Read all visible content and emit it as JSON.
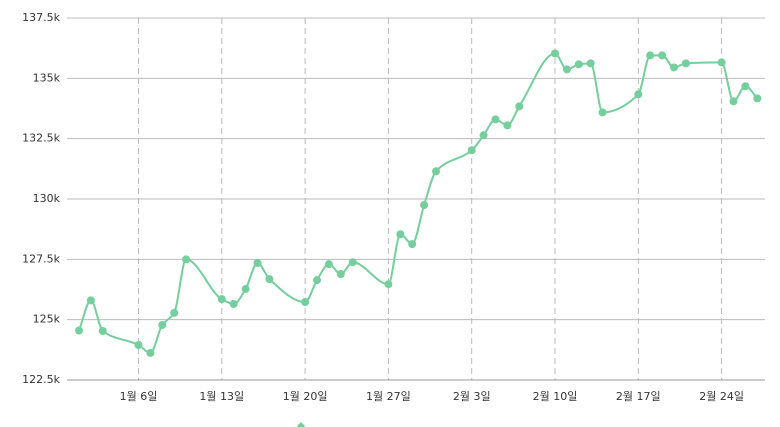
{
  "chart_data": {
    "type": "line",
    "x": [
      "1월 1일",
      "1월 2일",
      "1월 3일",
      "1월 6일",
      "1월 7일",
      "1월 8일",
      "1월 9일",
      "1월 10일",
      "1월 13일",
      "1월 14일",
      "1월 15일",
      "1월 16일",
      "1월 17일",
      "1월 20일",
      "1월 21일",
      "1월 22일",
      "1월 23일",
      "1월 24일",
      "1월 27일",
      "1월 28일",
      "1월 29일",
      "1월 30일",
      "1월 31일",
      "2월 3일",
      "2월 4일",
      "2월 5일",
      "2월 6일",
      "2월 7일",
      "2월 10일",
      "2월 11일",
      "2월 12일",
      "2월 13일",
      "2월 14일",
      "2월 17일",
      "2월 18일",
      "2월 19일",
      "2월 20일",
      "2월 21일",
      "2월 24일",
      "2월 25일",
      "2월 26일",
      "2월 27일"
    ],
    "series": [
      {
        "color": "#74cf9d",
        "values": [
          124550,
          125800,
          124530,
          123950,
          123620,
          124780,
          125280,
          127500,
          125850,
          125650,
          126270,
          127350,
          126680,
          125730,
          126640,
          127300,
          126890,
          127380,
          126470,
          128540,
          128130,
          129750,
          131150,
          132020,
          132640,
          133300,
          133050,
          133840,
          136030,
          135370,
          135580,
          135620,
          133590,
          134340,
          135950,
          135950,
          135450,
          135620,
          135660,
          134050,
          134670,
          134170
        ]
      }
    ],
    "xticks": [
      "1월 6일",
      "1월 13일",
      "1월 20일",
      "1월 27일",
      "2월 3일",
      "2월 10일",
      "2월 17일",
      "2월 24일"
    ],
    "ylim": [
      122500,
      137500
    ],
    "yticks": [
      {
        "value": 122500,
        "label": "122.5k"
      },
      {
        "value": 125000,
        "label": "125k"
      },
      {
        "value": 127500,
        "label": "127.5k"
      },
      {
        "value": 130000,
        "label": "130k"
      },
      {
        "value": 132500,
        "label": "132.5k"
      },
      {
        "value": 135000,
        "label": "135k"
      },
      {
        "value": 137500,
        "label": "137.5k"
      }
    ],
    "grid": true
  }
}
